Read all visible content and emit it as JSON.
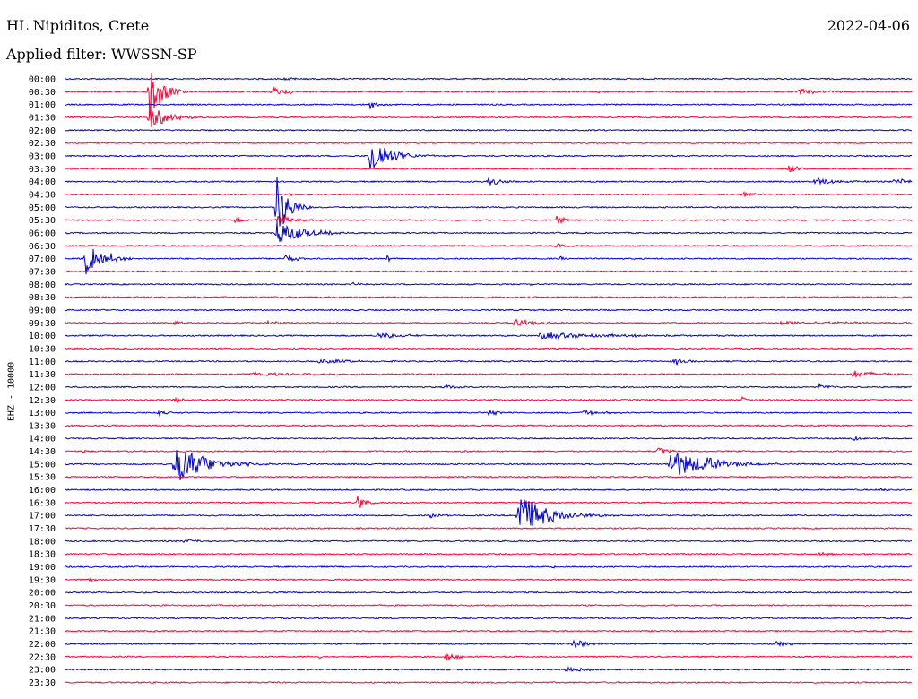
{
  "header": {
    "station": "HL Nipiditos, Crete",
    "date": "2022-04-06",
    "filter_label": "Applied filter: WWSSN-SP"
  },
  "chart_data": {
    "type": "line",
    "title": "HL Nipiditos, Crete",
    "ylabel": "EHZ - 10000",
    "xlabel": "",
    "grid": false,
    "legend": "none",
    "row_labels": [
      "00:00",
      "00:30",
      "01:00",
      "01:30",
      "02:00",
      "02:30",
      "03:00",
      "03:30",
      "04:00",
      "04:30",
      "05:00",
      "05:30",
      "06:00",
      "06:30",
      "07:00",
      "07:30",
      "08:00",
      "08:30",
      "09:00",
      "09:30",
      "10:00",
      "10:30",
      "11:00",
      "11:30",
      "12:00",
      "12:30",
      "13:00",
      "13:30",
      "14:00",
      "14:30",
      "15:00",
      "15:30",
      "16:00",
      "16:30",
      "17:00",
      "17:30",
      "18:00",
      "18:30",
      "19:00",
      "19:30",
      "20:00",
      "20:30",
      "21:00",
      "21:30",
      "22:00",
      "22:30",
      "23:00",
      "23:30"
    ],
    "colors": {
      "even": "#0000cc",
      "odd": "#ff0033"
    },
    "row_duration_min": 30,
    "events": [
      {
        "row": 0,
        "t": 0.26,
        "amp": 0.3,
        "dur": 0.01
      },
      {
        "row": 1,
        "t": 0.245,
        "amp": 1.0,
        "dur": 0.015
      },
      {
        "row": 1,
        "t": 0.865,
        "amp": 0.5,
        "dur": 0.035
      },
      {
        "row": 1,
        "t": 0.63,
        "amp": 0.25,
        "dur": 0.005
      },
      {
        "row": 1,
        "t": 0.1,
        "amp": 6.0,
        "dur": 0.012
      },
      {
        "row": 2,
        "t": 0.36,
        "amp": 0.9,
        "dur": 0.008
      },
      {
        "row": 3,
        "t": 0.1,
        "amp": 2.2,
        "dur": 0.02
      },
      {
        "row": 6,
        "t": 0.36,
        "amp": 4.0,
        "dur": 0.02
      },
      {
        "row": 7,
        "t": 0.855,
        "amp": 0.8,
        "dur": 0.01
      },
      {
        "row": 7,
        "t": 0.75,
        "amp": 0.2,
        "dur": 0.005
      },
      {
        "row": 8,
        "t": 0.5,
        "amp": 0.7,
        "dur": 0.015
      },
      {
        "row": 8,
        "t": 0.885,
        "amp": 0.8,
        "dur": 0.02
      },
      {
        "row": 8,
        "t": 0.98,
        "amp": 0.9,
        "dur": 0.01
      },
      {
        "row": 9,
        "t": 0.8,
        "amp": 0.8,
        "dur": 0.01
      },
      {
        "row": 9,
        "t": 0.265,
        "amp": 0.3,
        "dur": 0.006
      },
      {
        "row": 10,
        "t": 0.25,
        "amp": 6.0,
        "dur": 0.012
      },
      {
        "row": 11,
        "t": 0.2,
        "amp": 0.8,
        "dur": 0.01
      },
      {
        "row": 11,
        "t": 0.58,
        "amp": 0.9,
        "dur": 0.01
      },
      {
        "row": 11,
        "t": 0.25,
        "amp": 1.2,
        "dur": 0.015
      },
      {
        "row": 12,
        "t": 0.25,
        "amp": 2.0,
        "dur": 0.03
      },
      {
        "row": 13,
        "t": 0.58,
        "amp": 0.5,
        "dur": 0.01
      },
      {
        "row": 14,
        "t": 0.025,
        "amp": 3.0,
        "dur": 0.015
      },
      {
        "row": 14,
        "t": 0.055,
        "amp": 1.2,
        "dur": 0.01
      },
      {
        "row": 14,
        "t": 0.26,
        "amp": 0.8,
        "dur": 0.012
      },
      {
        "row": 14,
        "t": 0.38,
        "amp": 0.8,
        "dur": 0.005
      },
      {
        "row": 14,
        "t": 0.585,
        "amp": 0.4,
        "dur": 0.005
      },
      {
        "row": 16,
        "t": 0.34,
        "amp": 0.3,
        "dur": 0.01
      },
      {
        "row": 16,
        "t": 0.55,
        "amp": 0.3,
        "dur": 0.005
      },
      {
        "row": 19,
        "t": 0.13,
        "amp": 0.4,
        "dur": 0.01
      },
      {
        "row": 19,
        "t": 0.24,
        "amp": 0.4,
        "dur": 0.01
      },
      {
        "row": 19,
        "t": 0.53,
        "amp": 0.6,
        "dur": 0.03
      },
      {
        "row": 19,
        "t": 0.84,
        "amp": 0.3,
        "dur": 0.12
      },
      {
        "row": 20,
        "t": 0.37,
        "amp": 0.5,
        "dur": 0.03
      },
      {
        "row": 20,
        "t": 0.56,
        "amp": 0.6,
        "dur": 0.08
      },
      {
        "row": 21,
        "t": 0.3,
        "amp": 0.3,
        "dur": 0.005
      },
      {
        "row": 22,
        "t": 0.3,
        "amp": 0.5,
        "dur": 0.03
      },
      {
        "row": 22,
        "t": 0.72,
        "amp": 0.8,
        "dur": 0.01
      },
      {
        "row": 23,
        "t": 0.22,
        "amp": 0.4,
        "dur": 0.04
      },
      {
        "row": 23,
        "t": 0.93,
        "amp": 0.6,
        "dur": 0.03
      },
      {
        "row": 24,
        "t": 0.45,
        "amp": 0.6,
        "dur": 0.01
      },
      {
        "row": 24,
        "t": 0.89,
        "amp": 0.5,
        "dur": 0.01
      },
      {
        "row": 25,
        "t": 0.13,
        "amp": 0.6,
        "dur": 0.008
      },
      {
        "row": 25,
        "t": 0.8,
        "amp": 0.6,
        "dur": 0.008
      },
      {
        "row": 26,
        "t": 0.11,
        "amp": 0.5,
        "dur": 0.01
      },
      {
        "row": 26,
        "t": 0.5,
        "amp": 0.6,
        "dur": 0.012
      },
      {
        "row": 26,
        "t": 0.61,
        "amp": 0.5,
        "dur": 0.02
      },
      {
        "row": 28,
        "t": 0.93,
        "amp": 0.7,
        "dur": 0.008
      },
      {
        "row": 29,
        "t": 0.02,
        "amp": 0.4,
        "dur": 0.005
      },
      {
        "row": 29,
        "t": 0.47,
        "amp": 0.4,
        "dur": 0.005
      },
      {
        "row": 29,
        "t": 0.7,
        "amp": 0.9,
        "dur": 0.01
      },
      {
        "row": 30,
        "t": 0.13,
        "amp": 4.0,
        "dur": 0.03
      },
      {
        "row": 30,
        "t": 0.715,
        "amp": 2.5,
        "dur": 0.04
      },
      {
        "row": 30,
        "t": 0.755,
        "amp": 0.8,
        "dur": 0.01
      },
      {
        "row": 32,
        "t": 0.96,
        "amp": 0.4,
        "dur": 0.01
      },
      {
        "row": 33,
        "t": 0.345,
        "amp": 1.5,
        "dur": 0.008
      },
      {
        "row": 34,
        "t": 0.43,
        "amp": 0.7,
        "dur": 0.01
      },
      {
        "row": 34,
        "t": 0.535,
        "amp": 4.0,
        "dur": 0.03
      },
      {
        "row": 36,
        "t": 0.14,
        "amp": 0.4,
        "dur": 0.02
      },
      {
        "row": 37,
        "t": 0.89,
        "amp": 0.3,
        "dur": 0.03
      },
      {
        "row": 38,
        "t": 0.57,
        "amp": 0.3,
        "dur": 0.01
      },
      {
        "row": 39,
        "t": 0.03,
        "amp": 0.4,
        "dur": 0.005
      },
      {
        "row": 44,
        "t": 0.6,
        "amp": 1.0,
        "dur": 0.015
      },
      {
        "row": 44,
        "t": 0.84,
        "amp": 0.7,
        "dur": 0.012
      },
      {
        "row": 45,
        "t": 0.45,
        "amp": 1.0,
        "dur": 0.01
      },
      {
        "row": 45,
        "t": 0.3,
        "amp": 0.3,
        "dur": 0.005
      },
      {
        "row": 46,
        "t": 0.59,
        "amp": 0.4,
        "dur": 0.03
      }
    ]
  }
}
